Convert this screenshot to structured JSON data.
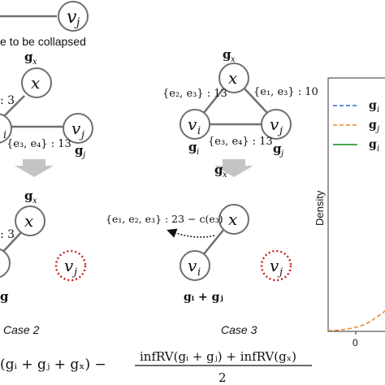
{
  "colors": {
    "edge": "#707070",
    "node_stroke": "#6f6f6f",
    "collapsed_node": "#cc2222",
    "arrow_fill": "#bdbdbd",
    "series_blue": "#2a6fc9",
    "series_orange": "#e8892b",
    "series_green": "#2e9a3a"
  },
  "top": {
    "node_vj": "v",
    "node_vj_sub": "j",
    "caption": "e to be collapsed"
  },
  "case1": {
    "gx_label": "g",
    "gx_sub": "x",
    "node_x": "x",
    "edge_weight": ": 3",
    "node_vi_sub": "i",
    "node_vj": "v",
    "node_vj_sub": "j",
    "edge_label": "{e",
    "edge_label_full": "{e₃, e₄} : 13",
    "gj_label": "g",
    "gj_sub": "j"
  },
  "case2": {
    "gx_label": "g",
    "gx_sub": "x",
    "node_x": "x",
    "edge_weight": ": 3",
    "collapsed_node": "v",
    "collapsed_node_sub": "j",
    "bottom_label": "g",
    "caption": "Case 2"
  },
  "case3_top": {
    "gx_label": "g",
    "gx_sub": "x",
    "node_x": "x",
    "left_edge_label": "{e₂, e₃} : 13",
    "right_edge_label": "{e₁, e₃} : 10",
    "node_vi": "v",
    "node_vi_sub": "i",
    "node_vj": "v",
    "node_vj_sub": "j",
    "bottom_edge_label": "{e₃, e₄} : 13",
    "gi_label": "g",
    "gi_sub": "i",
    "gj_label": "g",
    "gj_sub": "j"
  },
  "case3_bottom": {
    "gx_label": "g",
    "gx_sub": "x",
    "node_x": "x",
    "edge_label": "{e₁, e₂, e₃} : 23 − c(e₃)",
    "node_vi": "v",
    "node_vi_sub": "i",
    "collapsed_node": "v",
    "collapsed_node_sub": "j",
    "merged_label": "g",
    "merged_label_full": "gᵢ + gⱼ",
    "caption": "Case 3"
  },
  "plot": {
    "ylabel": "Density",
    "xtick": "0",
    "legend": [
      {
        "label": "g",
        "sub": "i",
        "style": "dashed",
        "color": "#2a6fc9"
      },
      {
        "label": "g",
        "sub": "j",
        "style": "dashed",
        "color": "#e8892b"
      },
      {
        "label": "g",
        "sub": "i",
        "style": "solid",
        "color": "#2e9a3a"
      }
    ]
  },
  "formula": {
    "left_part": "(gᵢ + gⱼ + gₓ) −",
    "numerator": "infRV(gᵢ + gⱼ) + infRV(gₓ)",
    "denominator": "2"
  }
}
